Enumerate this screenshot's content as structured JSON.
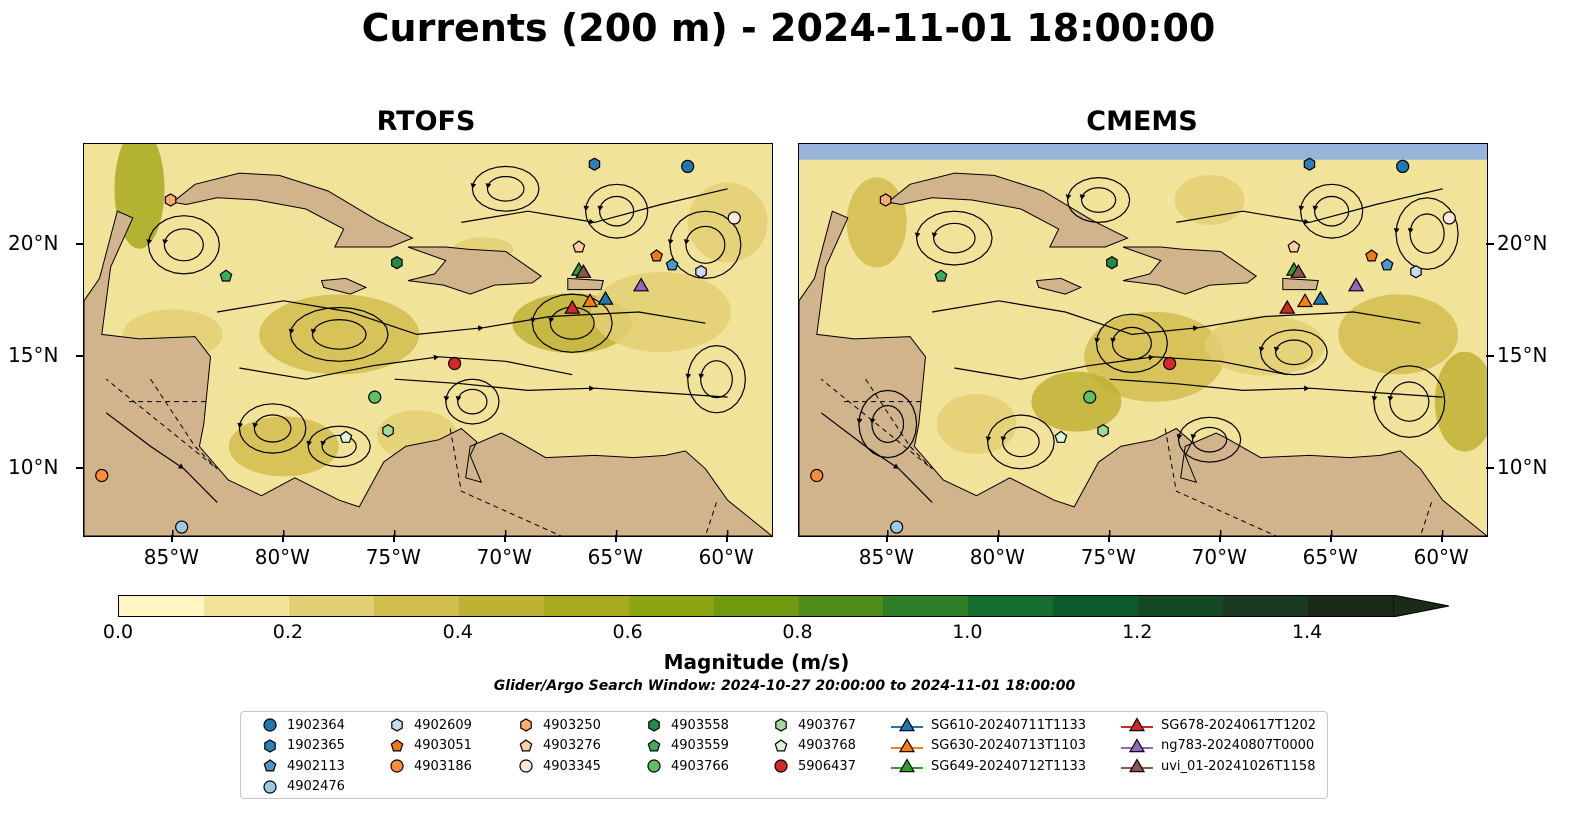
{
  "title": "Currents (200 m) - 2024-11-01 18:00:00",
  "panels": [
    {
      "title": "RTOFS"
    },
    {
      "title": "CMEMS"
    }
  ],
  "axes": {
    "lon_ticks": [
      "85°W",
      "80°W",
      "75°W",
      "70°W",
      "65°W",
      "60°W"
    ],
    "lat_ticks": [
      "20°N",
      "15°N",
      "10°N"
    ],
    "lon_range": [
      -89,
      -58
    ],
    "lat_range": [
      7,
      24.5
    ]
  },
  "colorbar": {
    "label": "Magnitude (m/s)",
    "ticks": [
      "0.0",
      "0.2",
      "0.4",
      "0.6",
      "0.8",
      "1.0",
      "1.2",
      "1.4"
    ],
    "range": [
      0.0,
      1.5
    ],
    "extend": "max",
    "colors": [
      "#fff6c2",
      "#f2e39a",
      "#e3cf73",
      "#d2bd4f",
      "#bfb134",
      "#a9a91f",
      "#8da512",
      "#6f9a10",
      "#4f8c1c",
      "#2e7d27",
      "#146c2f",
      "#0d5a2a",
      "#134a25",
      "#193a20",
      "#1c2a18"
    ]
  },
  "colors": {
    "land": "#d2b48c",
    "ocean": "#98b3dc"
  },
  "search_window": "Glider/Argo Search Window: 2024-10-27 20:00:00 to 2024-11-01 18:00:00",
  "legend": [
    {
      "label": "1902364",
      "marker": "circle",
      "color": "#1f77b4",
      "lon": -61.8,
      "lat": 23.5
    },
    {
      "label": "1902365",
      "marker": "hexagon",
      "color": "#2f80b8",
      "lon": -66.0,
      "lat": 23.6
    },
    {
      "label": "4902113",
      "marker": "pentagon",
      "color": "#4a97c9",
      "lon": -62.5,
      "lat": 19.1
    },
    {
      "label": "4902476",
      "marker": "circle",
      "color": "#9ecae1",
      "lon": -84.6,
      "lat": 7.4
    },
    {
      "label": "4902609",
      "marker": "hexagon",
      "color": "#c6dbef",
      "lon": -61.2,
      "lat": 18.8
    },
    {
      "label": "4903051",
      "marker": "pentagon",
      "color": "#f07a14",
      "lon": -63.2,
      "lat": 19.5
    },
    {
      "label": "4903186",
      "marker": "circle",
      "color": "#fd8d3c",
      "lon": -88.2,
      "lat": 9.7
    },
    {
      "label": "4903250",
      "marker": "hexagon",
      "color": "#fdae6b",
      "lon": -85.1,
      "lat": 22.0
    },
    {
      "label": "4903276",
      "marker": "pentagon",
      "color": "#fdd0a2",
      "lon": -66.7,
      "lat": 19.9
    },
    {
      "label": "4903345",
      "marker": "circle",
      "color": "#feeadb",
      "lon": -59.7,
      "lat": 21.2
    },
    {
      "label": "4903558",
      "marker": "hexagon",
      "color": "#238b45",
      "lon": -74.9,
      "lat": 19.2
    },
    {
      "label": "4903559",
      "marker": "pentagon",
      "color": "#41ab5d",
      "lon": -82.6,
      "lat": 18.6
    },
    {
      "label": "4903766",
      "marker": "circle",
      "color": "#5ec064",
      "lon": -75.9,
      "lat": 13.2
    },
    {
      "label": "4903767",
      "marker": "hexagon",
      "color": "#a1d99b",
      "lon": -75.3,
      "lat": 11.7
    },
    {
      "label": "4903768",
      "marker": "pentagon",
      "color": "#dcf5d4",
      "lon": -77.2,
      "lat": 11.4
    },
    {
      "label": "5906437",
      "marker": "circle",
      "color": "#d62728",
      "lon": -72.3,
      "lat": 14.7
    },
    {
      "label": "SG610-20240711T1133",
      "marker": "triangle",
      "color": "#1f77b4",
      "lon": -65.5,
      "lat": 17.6
    },
    {
      "label": "SG630-20240713T1103",
      "marker": "triangle",
      "color": "#ff7f0e",
      "lon": -66.2,
      "lat": 17.5
    },
    {
      "label": "SG649-20240712T1133",
      "marker": "triangle",
      "color": "#2ca02c",
      "lon": -66.7,
      "lat": 18.9
    },
    {
      "label": "SG678-20240617T1202",
      "marker": "triangle",
      "color": "#d62728",
      "lon": -67.0,
      "lat": 17.2
    },
    {
      "label": "ng783-20240807T0000",
      "marker": "triangle",
      "color": "#9467bd",
      "lon": -63.9,
      "lat": 18.2
    },
    {
      "label": "uvi_01-20241026T1158",
      "marker": "triangle",
      "color": "#8c564b",
      "lon": -66.5,
      "lat": 18.8
    }
  ]
}
